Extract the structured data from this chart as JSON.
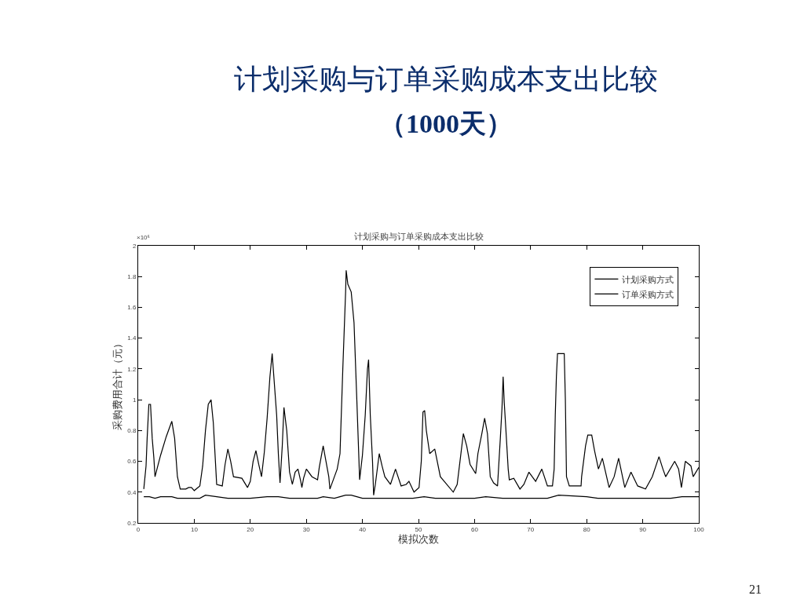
{
  "chart_data": {
    "type": "line",
    "title": "计划采购与订单采购成本支出比较",
    "subtitle": "（1000天）",
    "xlabel": "模拟次数",
    "ylabel": "采购费用合计（元）",
    "annotations": [
      "计划采购与订单采购成本支出比较",
      "×10⁶",
      "21"
    ],
    "xlim": [
      0,
      100
    ],
    "xticks": [
      0,
      10,
      20,
      30,
      40,
      50,
      60,
      70,
      80,
      90,
      100
    ],
    "ylim": [
      0.2,
      2
    ],
    "yticks": [
      0.2,
      0.4,
      0.6,
      0.8,
      1,
      1.2,
      1.4,
      1.6,
      1.8,
      2
    ],
    "legend": "top right",
    "marker": "none",
    "line_style": "solid",
    "series": [
      {
        "name": "计划采购方式",
        "color": "#000000",
        "x": [
          1,
          2,
          3,
          4,
          6,
          7,
          11,
          12,
          14,
          16,
          17,
          19,
          20,
          23,
          25,
          27,
          31,
          32,
          33,
          35,
          36,
          37,
          38,
          39,
          40,
          45,
          47,
          49,
          51,
          53,
          60,
          62,
          65,
          73,
          75,
          80,
          82,
          85,
          87,
          95,
          97,
          100
        ],
        "values": [
          0.37,
          0.37,
          0.36,
          0.37,
          0.37,
          0.36,
          0.36,
          0.38,
          0.37,
          0.36,
          0.36,
          0.36,
          0.36,
          0.37,
          0.37,
          0.36,
          0.36,
          0.36,
          0.37,
          0.36,
          0.37,
          0.38,
          0.38,
          0.37,
          0.36,
          0.36,
          0.36,
          0.36,
          0.37,
          0.36,
          0.36,
          0.37,
          0.36,
          0.36,
          0.38,
          0.37,
          0.36,
          0.36,
          0.36,
          0.36,
          0.37,
          0.37
        ]
      },
      {
        "name": "订单采购方式",
        "color": "#000000",
        "x": [
          1,
          1.4,
          1.6,
          1.9,
          2.2,
          2.5,
          2.8,
          3,
          3.5,
          4,
          5,
          6,
          6.5,
          7,
          7.5,
          8.5,
          9,
          9.5,
          10,
          11,
          11.5,
          12,
          12.5,
          13,
          13.4,
          14,
          15,
          15.5,
          16,
          16.5,
          17,
          18.5,
          19.5,
          20,
          20.5,
          21,
          21.5,
          22,
          22.5,
          23,
          23.5,
          23.9,
          24.3,
          24.7,
          25,
          25.3,
          25.7,
          26,
          26.5,
          27,
          27.5,
          28,
          28.5,
          29,
          29.2,
          29.5,
          30,
          31,
          32,
          32.3,
          33,
          33.5,
          34,
          34.2,
          35.5,
          36,
          36.5,
          37,
          37.1,
          37.4,
          38,
          38.5,
          39,
          39.5,
          40,
          40.5,
          40.9,
          41.1,
          41.4,
          41.8,
          42,
          42.3,
          43,
          43.5,
          44,
          45,
          45.9,
          46.9,
          47.8,
          48.3,
          49.2,
          50.1,
          50.5,
          50.8,
          51.1,
          51.4,
          52,
          52.9,
          53.9,
          54.6,
          56.2,
          56.9,
          57.4,
          58,
          58.6,
          59.2,
          60.2,
          60.6,
          61.3,
          61.8,
          62.3,
          62.8,
          63.4,
          64.1,
          64.6,
          64.9,
          65.1,
          65.3,
          65.6,
          66,
          66.2,
          67,
          68.1,
          68.8,
          69.7,
          70.9,
          72,
          73,
          73.9,
          74.2,
          74.4,
          74.6,
          74.8,
          76,
          76.2,
          76.4,
          76.9,
          79,
          79.1,
          79.8,
          80.2,
          80.9,
          81.4,
          82.1,
          82.8,
          84,
          84.9,
          85.7,
          86.8,
          87.9,
          89.1,
          90.5,
          91.7,
          92.9,
          93.6,
          94.1,
          95.7,
          96.4,
          96.9,
          97.6,
          98.6,
          99,
          100
        ],
        "values": [
          0.42,
          0.57,
          0.75,
          0.97,
          0.97,
          0.75,
          0.62,
          0.5,
          0.57,
          0.64,
          0.76,
          0.86,
          0.75,
          0.5,
          0.42,
          0.42,
          0.43,
          0.43,
          0.41,
          0.44,
          0.57,
          0.8,
          0.97,
          1.0,
          0.85,
          0.45,
          0.44,
          0.58,
          0.68,
          0.6,
          0.5,
          0.49,
          0.43,
          0.47,
          0.6,
          0.67,
          0.58,
          0.5,
          0.66,
          0.88,
          1.15,
          1.3,
          1.1,
          0.9,
          0.65,
          0.46,
          0.7,
          0.95,
          0.8,
          0.53,
          0.45,
          0.53,
          0.55,
          0.47,
          0.43,
          0.49,
          0.55,
          0.5,
          0.48,
          0.56,
          0.7,
          0.6,
          0.5,
          0.42,
          0.55,
          0.65,
          1.2,
          1.7,
          1.84,
          1.75,
          1.7,
          1.5,
          1.0,
          0.48,
          0.64,
          0.9,
          1.2,
          1.26,
          0.9,
          0.6,
          0.38,
          0.45,
          0.65,
          0.57,
          0.5,
          0.45,
          0.55,
          0.44,
          0.45,
          0.47,
          0.4,
          0.43,
          0.6,
          0.92,
          0.93,
          0.8,
          0.65,
          0.68,
          0.5,
          0.47,
          0.4,
          0.45,
          0.6,
          0.78,
          0.7,
          0.58,
          0.52,
          0.65,
          0.78,
          0.88,
          0.78,
          0.5,
          0.46,
          0.44,
          0.75,
          0.95,
          1.15,
          0.98,
          0.8,
          0.55,
          0.48,
          0.49,
          0.42,
          0.45,
          0.53,
          0.47,
          0.55,
          0.44,
          0.44,
          0.55,
          0.9,
          1.15,
          1.3,
          1.3,
          1.0,
          0.5,
          0.44,
          0.44,
          0.5,
          0.7,
          0.77,
          0.77,
          0.67,
          0.55,
          0.62,
          0.43,
          0.5,
          0.62,
          0.43,
          0.53,
          0.44,
          0.42,
          0.5,
          0.63,
          0.55,
          0.5,
          0.6,
          0.55,
          0.43,
          0.6,
          0.57,
          0.5,
          0.56
        ]
      }
    ]
  }
}
